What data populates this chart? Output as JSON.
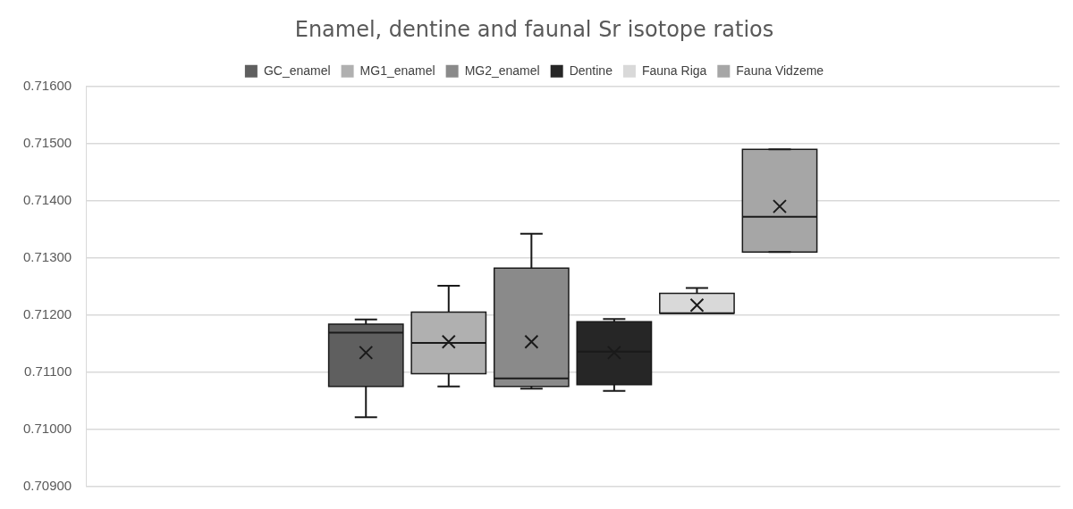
{
  "chart_data": {
    "type": "box",
    "title": "Enamel, dentine and faunal Sr isotope ratios",
    "categories": [
      null
    ],
    "series": [
      {
        "name": "GC_enamel",
        "color": "#5f5f5f",
        "boxes": [
          {
            "low": 0.71021,
            "q1": 0.71075,
            "median": 0.71169,
            "q3": 0.71184,
            "high": 0.71192,
            "mean": 0.71134
          }
        ]
      },
      {
        "name": "MG1_enamel",
        "color": "#b0b0b0",
        "boxes": [
          {
            "low": 0.71075,
            "q1": 0.71097,
            "median": 0.71151,
            "q3": 0.71205,
            "high": 0.71251,
            "mean": 0.71153
          }
        ]
      },
      {
        "name": "MG2_enamel",
        "color": "#8a8a8a",
        "boxes": [
          {
            "low": 0.71071,
            "q1": 0.71075,
            "median": 0.71089,
            "q3": 0.71282,
            "high": 0.71342,
            "mean": 0.71153
          }
        ]
      },
      {
        "name": "Dentine",
        "color": "#262626",
        "boxes": [
          {
            "low": 0.71067,
            "q1": 0.71078,
            "median": 0.71136,
            "q3": 0.71188,
            "high": 0.71193,
            "mean": 0.71134
          }
        ]
      },
      {
        "name": "Fauna Riga",
        "color": "#d9d9d9",
        "boxes": [
          {
            "low": 0.71203,
            "q1": 0.71203,
            "median": 0.71203,
            "q3": 0.71238,
            "high": 0.71247,
            "mean": 0.71217
          }
        ]
      },
      {
        "name": "Fauna Vidzeme",
        "color": "#a6a6a6",
        "boxes": [
          {
            "low": 0.7131,
            "q1": 0.7131,
            "median": 0.71372,
            "q3": 0.7149,
            "high": 0.7149,
            "mean": 0.7139
          }
        ]
      }
    ],
    "ylim": [
      0.709,
      0.716
    ],
    "yticks": [
      {
        "value": 0.709,
        "label": "0.70900"
      },
      {
        "value": 0.71,
        "label": "0.71000"
      },
      {
        "value": 0.711,
        "label": "0.71100"
      },
      {
        "value": 0.712,
        "label": "0.71200"
      },
      {
        "value": 0.713,
        "label": "0.71300"
      },
      {
        "value": 0.714,
        "label": "0.71400"
      },
      {
        "value": 0.715,
        "label": "0.71500"
      },
      {
        "value": 0.716,
        "label": "0.71600"
      }
    ],
    "grid": "y",
    "legend": "top",
    "marker": "cross"
  }
}
